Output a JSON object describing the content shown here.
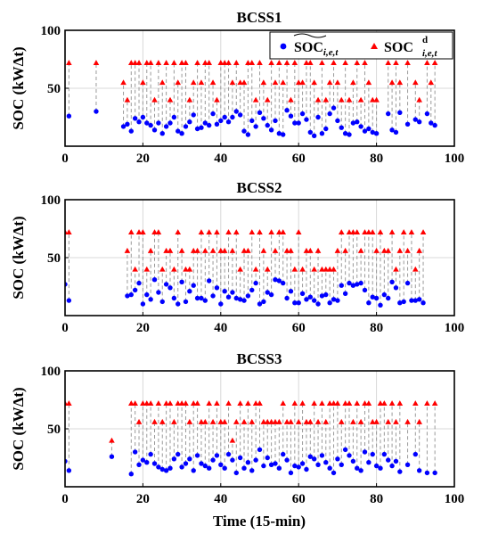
{
  "figure": {
    "xlabel": "Time (15-min)"
  },
  "legend": {
    "series_blue": "SOC",
    "series_blue_sub": "i,e,t",
    "series_red": "SOC",
    "series_red_sup": "d",
    "series_red_sub": "i,e,t"
  },
  "colors": {
    "soc": "#0000ff",
    "soc_d": "#ff0000",
    "stem": "#9a9a9a",
    "grid": "#d9d9d9"
  },
  "chart_data": [
    {
      "type": "scatter",
      "title": "BCSS1",
      "ylabel": "SOC (kWΔt)",
      "xlim": [
        0,
        100
      ],
      "ylim": [
        0,
        100
      ],
      "xticks": [
        0,
        20,
        40,
        60,
        80,
        100
      ],
      "yticks": [
        50,
        100
      ],
      "grid": true,
      "legend_position": "top-right",
      "x": [
        1,
        8,
        15,
        16,
        17,
        18,
        19,
        20,
        21,
        22,
        23,
        24,
        25,
        26,
        27,
        28,
        29,
        30,
        31,
        32,
        33,
        34,
        35,
        36,
        37,
        38,
        39,
        40,
        41,
        42,
        43,
        44,
        45,
        46,
        47,
        48,
        49,
        50,
        51,
        52,
        53,
        54,
        55,
        56,
        57,
        58,
        59,
        60,
        61,
        62,
        63,
        64,
        65,
        66,
        67,
        68,
        69,
        70,
        71,
        72,
        73,
        74,
        75,
        76,
        77,
        78,
        79,
        80,
        83,
        84,
        85,
        86,
        88,
        90,
        91,
        93,
        94,
        95
      ],
      "soc": [
        26,
        30,
        17,
        19,
        13,
        24,
        21,
        25,
        20,
        18,
        14,
        20,
        11,
        17,
        20,
        25,
        13,
        11,
        17,
        21,
        27,
        15,
        16,
        20,
        18,
        28,
        19,
        22,
        25,
        21,
        25,
        30,
        27,
        13,
        10,
        22,
        17,
        29,
        24,
        18,
        14,
        22,
        11,
        10,
        31,
        26,
        20,
        20,
        28,
        23,
        12,
        9,
        25,
        11,
        15,
        28,
        33,
        22,
        16,
        11,
        10,
        20,
        21,
        17,
        13,
        15,
        12,
        11,
        28,
        14,
        12,
        29,
        19,
        23,
        21,
        28,
        20,
        18
      ],
      "soc_d": [
        72,
        72,
        55,
        40,
        72,
        72,
        72,
        55,
        72,
        72,
        40,
        72,
        55,
        72,
        40,
        72,
        55,
        72,
        72,
        40,
        55,
        72,
        55,
        72,
        72,
        55,
        40,
        72,
        72,
        72,
        55,
        72,
        55,
        55,
        72,
        72,
        40,
        72,
        55,
        40,
        72,
        55,
        72,
        55,
        72,
        40,
        72,
        55,
        55,
        72,
        72,
        55,
        40,
        72,
        40,
        55,
        72,
        55,
        40,
        72,
        40,
        55,
        72,
        40,
        72,
        55,
        40,
        40,
        72,
        55,
        72,
        55,
        72,
        55,
        40,
        72,
        55,
        72
      ]
    },
    {
      "type": "scatter",
      "title": "BCSS2",
      "ylabel": "SOC (kWΔt)",
      "xlim": [
        0,
        100
      ],
      "ylim": [
        0,
        100
      ],
      "xticks": [
        0,
        20,
        40,
        60,
        80,
        100
      ],
      "yticks": [
        50,
        100
      ],
      "grid": true,
      "x": [
        0,
        1,
        16,
        17,
        18,
        19,
        20,
        21,
        22,
        23,
        24,
        25,
        26,
        27,
        28,
        29,
        30,
        31,
        32,
        33,
        34,
        35,
        36,
        37,
        38,
        39,
        40,
        41,
        42,
        43,
        44,
        45,
        46,
        47,
        48,
        49,
        50,
        51,
        52,
        53,
        54,
        55,
        56,
        57,
        58,
        59,
        60,
        61,
        62,
        63,
        64,
        65,
        66,
        67,
        68,
        69,
        70,
        71,
        72,
        73,
        74,
        75,
        76,
        77,
        78,
        79,
        80,
        81,
        82,
        83,
        84,
        85,
        86,
        87,
        88,
        89,
        90,
        91,
        92
      ],
      "soc": [
        27,
        13,
        17,
        18,
        22,
        28,
        10,
        18,
        14,
        31,
        20,
        12,
        27,
        24,
        15,
        10,
        29,
        12,
        21,
        26,
        15,
        15,
        13,
        30,
        17,
        24,
        10,
        21,
        16,
        20,
        15,
        14,
        13,
        17,
        22,
        28,
        10,
        12,
        20,
        18,
        31,
        30,
        28,
        15,
        21,
        11,
        11,
        19,
        14,
        16,
        13,
        10,
        17,
        18,
        11,
        14,
        13,
        26,
        19,
        28,
        26,
        27,
        28,
        22,
        11,
        16,
        15,
        9,
        18,
        15,
        29,
        24,
        11,
        12,
        28,
        13,
        13,
        14,
        11
      ],
      "soc_d": [
        72,
        72,
        56,
        72,
        40,
        72,
        72,
        40,
        56,
        72,
        72,
        40,
        56,
        56,
        40,
        72,
        56,
        40,
        40,
        56,
        56,
        72,
        56,
        72,
        56,
        72,
        56,
        56,
        72,
        56,
        72,
        40,
        56,
        56,
        72,
        40,
        72,
        56,
        40,
        72,
        56,
        72,
        72,
        56,
        56,
        40,
        72,
        40,
        56,
        56,
        40,
        56,
        40,
        40,
        40,
        40,
        56,
        72,
        56,
        72,
        72,
        72,
        56,
        72,
        72,
        72,
        56,
        72,
        56,
        56,
        72,
        40,
        56,
        72,
        56,
        72,
        40,
        56,
        72
      ]
    },
    {
      "type": "scatter",
      "title": "BCSS3",
      "ylabel": "SOC (kWΔt)",
      "xlim": [
        0,
        100
      ],
      "ylim": [
        0,
        100
      ],
      "xticks": [
        0,
        20,
        40,
        60,
        80,
        100
      ],
      "yticks": [
        50,
        100
      ],
      "grid": true,
      "x": [
        0,
        1,
        12,
        17,
        18,
        19,
        20,
        21,
        22,
        23,
        24,
        25,
        26,
        27,
        28,
        29,
        30,
        31,
        32,
        33,
        34,
        35,
        36,
        37,
        38,
        39,
        40,
        41,
        42,
        43,
        44,
        45,
        46,
        47,
        48,
        49,
        50,
        51,
        52,
        53,
        54,
        55,
        56,
        57,
        58,
        59,
        60,
        61,
        62,
        63,
        64,
        65,
        66,
        67,
        68,
        69,
        70,
        71,
        72,
        73,
        74,
        75,
        76,
        77,
        78,
        79,
        80,
        81,
        82,
        83,
        84,
        85,
        86,
        88,
        90,
        91,
        93,
        95
      ],
      "soc": [
        22,
        14,
        26,
        11,
        30,
        19,
        23,
        21,
        28,
        20,
        17,
        15,
        14,
        16,
        24,
        28,
        17,
        20,
        24,
        14,
        27,
        20,
        18,
        16,
        23,
        27,
        19,
        16,
        28,
        23,
        12,
        25,
        16,
        21,
        14,
        23,
        32,
        18,
        25,
        19,
        20,
        16,
        28,
        23,
        12,
        18,
        17,
        20,
        15,
        26,
        24,
        19,
        27,
        21,
        16,
        12,
        24,
        19,
        32,
        27,
        22,
        16,
        14,
        30,
        21,
        28,
        18,
        16,
        28,
        23,
        18,
        22,
        13,
        19,
        28,
        14,
        12,
        12
      ],
      "soc_d": [
        72,
        72,
        40,
        72,
        72,
        56,
        72,
        72,
        72,
        56,
        72,
        56,
        72,
        72,
        56,
        72,
        72,
        72,
        56,
        72,
        72,
        56,
        56,
        72,
        56,
        72,
        56,
        56,
        72,
        40,
        56,
        72,
        56,
        72,
        56,
        72,
        72,
        56,
        56,
        56,
        56,
        56,
        72,
        56,
        56,
        72,
        56,
        72,
        56,
        56,
        72,
        56,
        72,
        56,
        72,
        72,
        72,
        56,
        72,
        72,
        56,
        72,
        56,
        72,
        72,
        56,
        56,
        72,
        72,
        56,
        72,
        56,
        72,
        56,
        72,
        56,
        72,
        72
      ]
    }
  ]
}
